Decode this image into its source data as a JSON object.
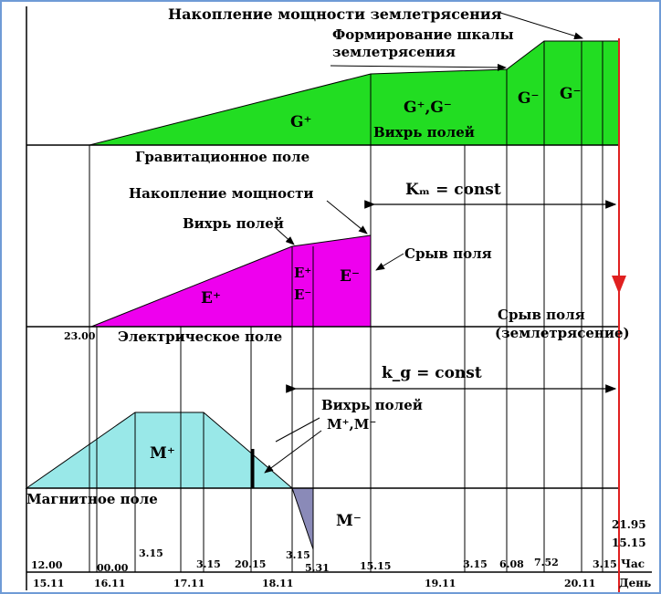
{
  "titles": {
    "power_accumulation_eq": "Накопление мощности землетрясения",
    "scale_formation_line1": "Формирование шкалы",
    "scale_formation_line2": "землетрясения",
    "gravity_field": "Гравитационное поле",
    "power_accumulation": "Накопление мощности",
    "vortex_e": "Вихрь полей",
    "field_break": "Срыв поля",
    "field_break_eq_line1": "Срыв поля",
    "field_break_eq_line2": "(землетрясение)",
    "electric_field": "Электрическое поле",
    "vortex_m": "Вихрь полей",
    "magnetic_field": "Магнитное поле",
    "vortex_g": "Вихрь полей"
  },
  "regions": {
    "g_plus": "G⁺",
    "g_plus_minus": "G⁺,G⁻",
    "g_minus_1": "G⁻",
    "g_minus_2": "G⁻",
    "e_plus": "E⁺",
    "e_plus_small": "E⁺",
    "e_minus_small": "E⁻",
    "e_minus": "E⁻",
    "m_plus": "M⁺",
    "m_plus_minus": "M⁺,M⁻",
    "m_minus": "M⁻"
  },
  "formulas": {
    "km_const": "Kₘ = const",
    "kg_const": "k_g = const"
  },
  "time_labels": [
    "12.00",
    "00.00",
    "3.15",
    "3.15",
    "20.15",
    "3.15",
    "5.31",
    "15.15",
    "3.15",
    "6.08",
    "7.52",
    "3.15"
  ],
  "start_time": "23.00",
  "right_times": [
    "21.95",
    "15.15"
  ],
  "hour_label": "Час",
  "day_label": "День",
  "dates": [
    "15.11",
    "16.11",
    "17.11",
    "18.11",
    "19.11",
    "20.11"
  ],
  "colors": {
    "gravity": "#22dd22",
    "electric": "#ee00ee",
    "magnetic": "#99e8e8",
    "m_minus": "#8a8ab8",
    "quake_line": "#e02020",
    "frame": "#6f9bd6"
  }
}
